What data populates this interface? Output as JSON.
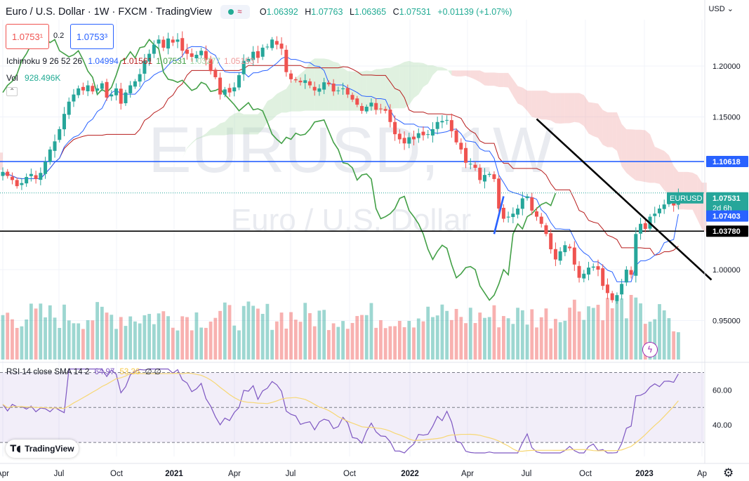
{
  "header": {
    "title": "Euro / U.S. Dollar · 1W · FXCM · TradingView",
    "ohlc": [
      {
        "key": "O",
        "value": "1.06392"
      },
      {
        "key": "H",
        "value": "1.07763"
      },
      {
        "key": "L",
        "value": "1.06365"
      },
      {
        "key": "C",
        "value": "1.07531"
      },
      {
        "key": "",
        "value": "+0.01139 (+1.07%)"
      }
    ]
  },
  "trade": {
    "sell": "1.0753¹",
    "spread": "0.2",
    "buy": "1.0753³"
  },
  "indicators": {
    "ichimoku_label": "Ichimoku 9 26 52 26",
    "ichimoku_values": [
      {
        "value": "1.04994",
        "color": "#2962ff"
      },
      {
        "value": "1.01561",
        "color": "#b71c1c"
      },
      {
        "value": "1.07531",
        "color": "#43a047"
      },
      {
        "value": "1.03277",
        "color": "#a5d6a7"
      },
      {
        "value": "1.05153",
        "color": "#ef9a9a"
      }
    ],
    "vol_label": "Vol",
    "vol_value": "928.496K",
    "rsi_label": "RSI 14 close SMA 14 2",
    "rsi_value": "64.97",
    "rsi_sma_value": "53.36",
    "rsi_extra": "∅ ∅"
  },
  "currency": "USD",
  "watermark": {
    "symbol": "EURUSD, 1W",
    "name": "Euro / U.S. Dollar"
  },
  "branding": "TradingView",
  "colors": {
    "up": "#26a69a",
    "down": "#ef5350",
    "tenkan": "#2962ff",
    "kijun": "#b71c1c",
    "chikou": "#43a047",
    "cloud_bull": "#a5d6a7",
    "cloud_bear": "#ef9a9a",
    "rsi": "#7e57c2",
    "rsi_sma": "#f7d774"
  },
  "chart_data": {
    "type": "candlestick",
    "x_ticks": [
      {
        "label": "Apr",
        "bold": false
      },
      {
        "label": "Jul",
        "bold": false
      },
      {
        "label": "Oct",
        "bold": false
      },
      {
        "label": "2021",
        "bold": true
      },
      {
        "label": "Apr",
        "bold": false
      },
      {
        "label": "Jul",
        "bold": false
      },
      {
        "label": "Oct",
        "bold": false
      },
      {
        "label": "2022",
        "bold": true
      },
      {
        "label": "Apr",
        "bold": false
      },
      {
        "label": "Jul",
        "bold": false
      },
      {
        "label": "Oct",
        "bold": false
      },
      {
        "label": "2023",
        "bold": true
      },
      {
        "label": "Ap",
        "bold": false
      }
    ],
    "y_ticks": [
      "1.20000",
      "1.15000",
      "1.00000",
      "0.95000"
    ],
    "ylim": [
      0.92,
      1.24
    ],
    "price_labels": [
      {
        "text": "1.10618",
        "value": 1.10618,
        "style": "blue"
      },
      {
        "text": "1.07531",
        "value": 1.07531,
        "style": "green",
        "name": "EURUSD",
        "sub": "2d 6h"
      },
      {
        "text": "1.07403",
        "value": 1.07403,
        "style": "blue"
      },
      {
        "text": "1.03780",
        "value": 1.0378,
        "style": "black"
      }
    ],
    "hlines": [
      {
        "value": 1.10618,
        "color": "#2962ff"
      },
      {
        "value": 1.0378,
        "color": "#000000"
      }
    ],
    "trendline": {
      "from": {
        "week": 113,
        "price": 1.148
      },
      "to": {
        "week": 150,
        "price": 0.99
      }
    },
    "closes": [
      1.096,
      1.092,
      1.088,
      1.082,
      1.085,
      1.091,
      1.094,
      1.089,
      1.095,
      1.106,
      1.118,
      1.126,
      1.138,
      1.153,
      1.165,
      1.172,
      1.178,
      1.176,
      1.181,
      1.175,
      1.178,
      1.183,
      1.169,
      1.172,
      1.178,
      1.163,
      1.174,
      1.181,
      1.185,
      1.192,
      1.205,
      1.212,
      1.221,
      1.226,
      1.218,
      1.227,
      1.223,
      1.226,
      1.215,
      1.212,
      1.209,
      1.211,
      1.215,
      1.206,
      1.195,
      1.189,
      1.172,
      1.177,
      1.174,
      1.179,
      1.191,
      1.205,
      1.207,
      1.214,
      1.208,
      1.218,
      1.219,
      1.226,
      1.221,
      1.217,
      1.194,
      1.187,
      1.186,
      1.184,
      1.186,
      1.181,
      1.176,
      1.178,
      1.184,
      1.182,
      1.175,
      1.176,
      1.178,
      1.172,
      1.167,
      1.162,
      1.156,
      1.16,
      1.164,
      1.157,
      1.158,
      1.156,
      1.145,
      1.133,
      1.128,
      1.124,
      1.13,
      1.128,
      1.134,
      1.132,
      1.133,
      1.138,
      1.145,
      1.146,
      1.147,
      1.136,
      1.125,
      1.118,
      1.105,
      1.104,
      1.1,
      1.088,
      1.093,
      1.094,
      1.089,
      1.06,
      1.05,
      1.052,
      1.055,
      1.06,
      1.07,
      1.072,
      1.058,
      1.052,
      1.045,
      1.035,
      1.02,
      1.01,
      1.018,
      1.024,
      1.021,
      1.005,
      0.992,
      0.996,
      1.002,
      1.003,
      1.0,
      0.984,
      0.977,
      0.97,
      0.975,
      0.986,
      1.0,
      0.995,
      1.035,
      1.045,
      1.04,
      1.052,
      1.055,
      1.06,
      1.064,
      1.066,
      1.063,
      1.075
    ],
    "volume_range": [
      0,
      1400
    ],
    "rsi_ylim": [
      20,
      75
    ],
    "rsi_ticks": [
      "60.00",
      "40.00"
    ],
    "rsi_band": [
      30,
      70
    ]
  }
}
